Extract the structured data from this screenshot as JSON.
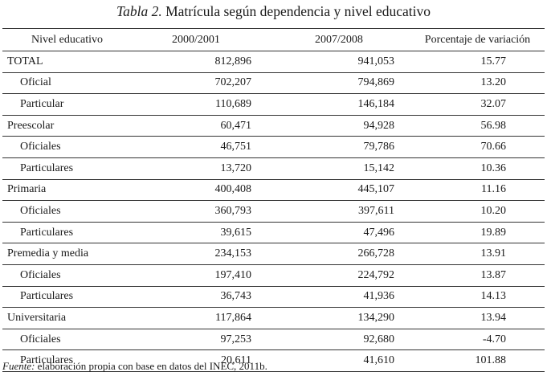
{
  "title": {
    "prefix": "Tabla 2.",
    "text": "Matrícula según dependencia y nivel educativo"
  },
  "table": {
    "headers": [
      "Nivel educativo",
      "2000/2001",
      "2007/2008",
      "Porcentaje de variación"
    ],
    "rows": [
      {
        "label": "TOTAL",
        "v2000": "812,896",
        "v2007": "941,053",
        "pct": "15.77"
      },
      {
        "label": "Oficial",
        "v2000": "702,207",
        "v2007": "794,869",
        "pct": "13.20"
      },
      {
        "label": "Particular",
        "v2000": "110,689",
        "v2007": "146,184",
        "pct": "32.07"
      },
      {
        "label": "Preescolar",
        "v2000": "60,471",
        "v2007": "94,928",
        "pct": "56.98"
      },
      {
        "label": "Oficiales",
        "v2000": "46,751",
        "v2007": "79,786",
        "pct": "70.66"
      },
      {
        "label": "Particulares",
        "v2000": "13,720",
        "v2007": "15,142",
        "pct": "10.36"
      },
      {
        "label": "Primaria",
        "v2000": "400,408",
        "v2007": "445,107",
        "pct": "11.16"
      },
      {
        "label": "Oficiales",
        "v2000": "360,793",
        "v2007": "397,611",
        "pct": "10.20"
      },
      {
        "label": "Particulares",
        "v2000": "39,615",
        "v2007": "47,496",
        "pct": "19.89"
      },
      {
        "label": "Premedia y media",
        "v2000": "234,153",
        "v2007": "266,728",
        "pct": "13.91"
      },
      {
        "label": "Oficiales",
        "v2000": "197,410",
        "v2007": "224,792",
        "pct": "13.87"
      },
      {
        "label": "Particulares",
        "v2000": "36,743",
        "v2007": "41,936",
        "pct": "14.13"
      },
      {
        "label": "Universitaria",
        "v2000": "117,864",
        "v2007": "134,290",
        "pct": "13.94"
      },
      {
        "label": "Oficiales",
        "v2000": "97,253",
        "v2007": "92,680",
        "pct": "-4.70"
      },
      {
        "label": "Particulares",
        "v2000": "20,611",
        "v2007": "41,610",
        "pct": "101.88"
      }
    ]
  },
  "source": {
    "label": "Fuente:",
    "text": "elaboración propia con base en datos del INEC, 2011b."
  }
}
